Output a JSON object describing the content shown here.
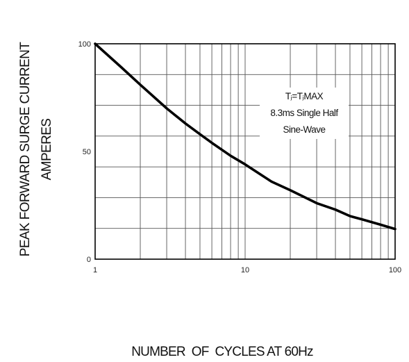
{
  "chart_data": {
    "type": "line",
    "xlabel": "NUMBER  OF  CYCLES AT 60Hz",
    "ylabel_lines": [
      "PEAK FORWARD SURGE CURRENT",
      "AMPERES"
    ],
    "x_scale": "log",
    "xlim": [
      1,
      100
    ],
    "ylim": [
      0,
      100
    ],
    "x_tick_labels": [
      "1",
      "10",
      "100"
    ],
    "y_tick_labels": [
      "0",
      "50",
      "100"
    ],
    "x_ticks": [
      1,
      10,
      100
    ],
    "y_ticks": [
      0,
      50,
      100
    ],
    "grid": true,
    "annotation_lines": [
      "Tⱼ=TⱼMAX",
      "8.3ms Single Half",
      "Sine-Wave"
    ],
    "annotation_position": "top-right",
    "series": [
      {
        "color": "#000000",
        "x": [
          1,
          1.5,
          2,
          3,
          4,
          5,
          6,
          8,
          10,
          15,
          20,
          30,
          40,
          50,
          60,
          80,
          100
        ],
        "y": [
          100,
          89,
          81,
          70,
          63,
          58,
          54,
          48,
          44,
          36,
          32,
          26,
          23,
          20,
          18.5,
          16,
          14
        ]
      }
    ]
  }
}
